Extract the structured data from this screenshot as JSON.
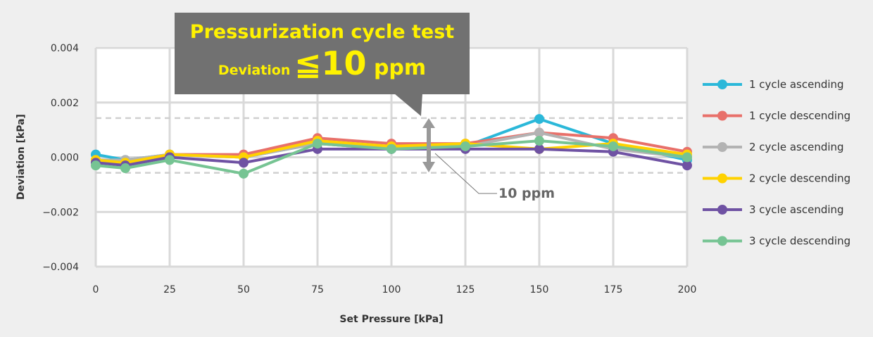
{
  "callout": {
    "title": "Pressurization cycle test",
    "deviation_label": "Deviation",
    "deviation_value": "≦10",
    "deviation_unit": " ppm"
  },
  "annotation": {
    "label": "10 ppm"
  },
  "chart_data": {
    "type": "line",
    "xlabel": "Set Pressure [kPa]",
    "ylabel": "Deviation [kPa]",
    "x": [
      0,
      10,
      25,
      50,
      75,
      100,
      125,
      150,
      175,
      200
    ],
    "xticks": [
      "0",
      "25",
      "50",
      "75",
      "100",
      "125",
      "150",
      "175",
      "200"
    ],
    "xtick_values": [
      0,
      25,
      50,
      75,
      100,
      125,
      150,
      175,
      200
    ],
    "yticks": [
      "0.004",
      "0.002",
      "0.000",
      "−0.002",
      "−0.004"
    ],
    "ytick_values": [
      0.004,
      0.002,
      0,
      -0.002,
      -0.004
    ],
    "xlim": [
      0,
      200
    ],
    "ylim": [
      -0.004,
      0.004
    ],
    "grid": true,
    "reference_band": [
      -0.00057,
      0.00143
    ],
    "legend": "right",
    "series": [
      {
        "name": "1 cycle ascending",
        "color": "#2bb8d9",
        "values": [
          0.0001,
          -0.0001,
          0.0001,
          0.0,
          0.0005,
          0.0003,
          0.0004,
          0.0014,
          0.0005,
          -0.0001
        ]
      },
      {
        "name": "1 cycle descending",
        "color": "#e8706a",
        "values": [
          -0.0001,
          -0.0002,
          0.0001,
          0.0001,
          0.0007,
          0.0005,
          0.0005,
          0.0009,
          0.0007,
          0.0002
        ]
      },
      {
        "name": "2 cycle ascending",
        "color": "#b3b3b3",
        "values": [
          -0.0001,
          -0.0001,
          0.0001,
          0.0,
          0.0005,
          0.0003,
          0.0004,
          0.0009,
          0.0003,
          0.0
        ]
      },
      {
        "name": "2 cycle descending",
        "color": "#ffd200",
        "values": [
          -0.0001,
          -0.0002,
          0.0001,
          0.0,
          0.0006,
          0.0004,
          0.0005,
          0.0003,
          0.0005,
          0.0001
        ]
      },
      {
        "name": "3 cycle ascending",
        "color": "#6f52a3",
        "values": [
          -0.0002,
          -0.0003,
          0.0,
          -0.0002,
          0.0003,
          0.0003,
          0.0003,
          0.0003,
          0.0002,
          -0.0003
        ]
      },
      {
        "name": "3 cycle descending",
        "color": "#76c493",
        "values": [
          -0.0003,
          -0.0004,
          -0.0001,
          -0.0006,
          0.0005,
          0.0003,
          0.0004,
          0.0006,
          0.0004,
          0.0
        ]
      }
    ]
  }
}
